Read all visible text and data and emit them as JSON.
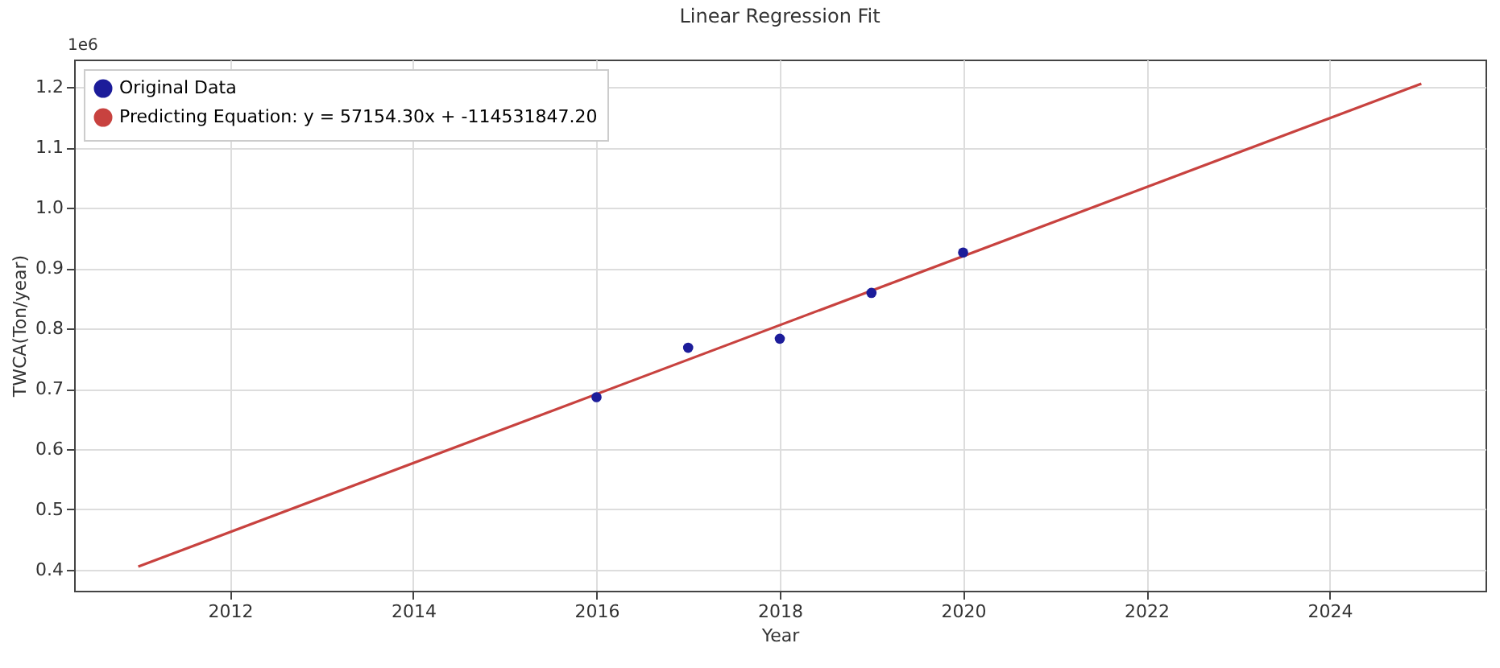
{
  "chart_data": {
    "type": "scatter",
    "title": "Linear Regression Fit",
    "xlabel": "Year",
    "ylabel": "TWCA(Ton/year)",
    "annotations": [
      "1e6"
    ],
    "xlim": [
      2010.3,
      2025.7
    ],
    "xticks": [
      2012,
      2014,
      2016,
      2018,
      2020,
      2022,
      2024
    ],
    "ylim": [
      0.365,
      1.246
    ],
    "yticks": [
      0.4,
      0.5,
      0.6,
      0.7,
      0.8,
      0.9,
      {
        "value": 1.0,
        "label": "1.0"
      },
      1.1,
      1.2
    ],
    "grid": true,
    "legend": "top left",
    "series": [
      {
        "name": "Original Data",
        "marker": "circle",
        "color": "#1c1c9a",
        "x": [
          2016,
          2017,
          2018,
          2019,
          2020
        ],
        "values": [
          0.686,
          0.768,
          0.783,
          0.859,
          0.926
        ]
      },
      {
        "name": "Predicting Equation: y = 57154.30x + -114531847.20",
        "type": "line",
        "line_style": "solid",
        "color": "#c8423f",
        "x": [
          2011,
          2025
        ],
        "values": [
          0.405,
          1.206
        ]
      }
    ]
  }
}
